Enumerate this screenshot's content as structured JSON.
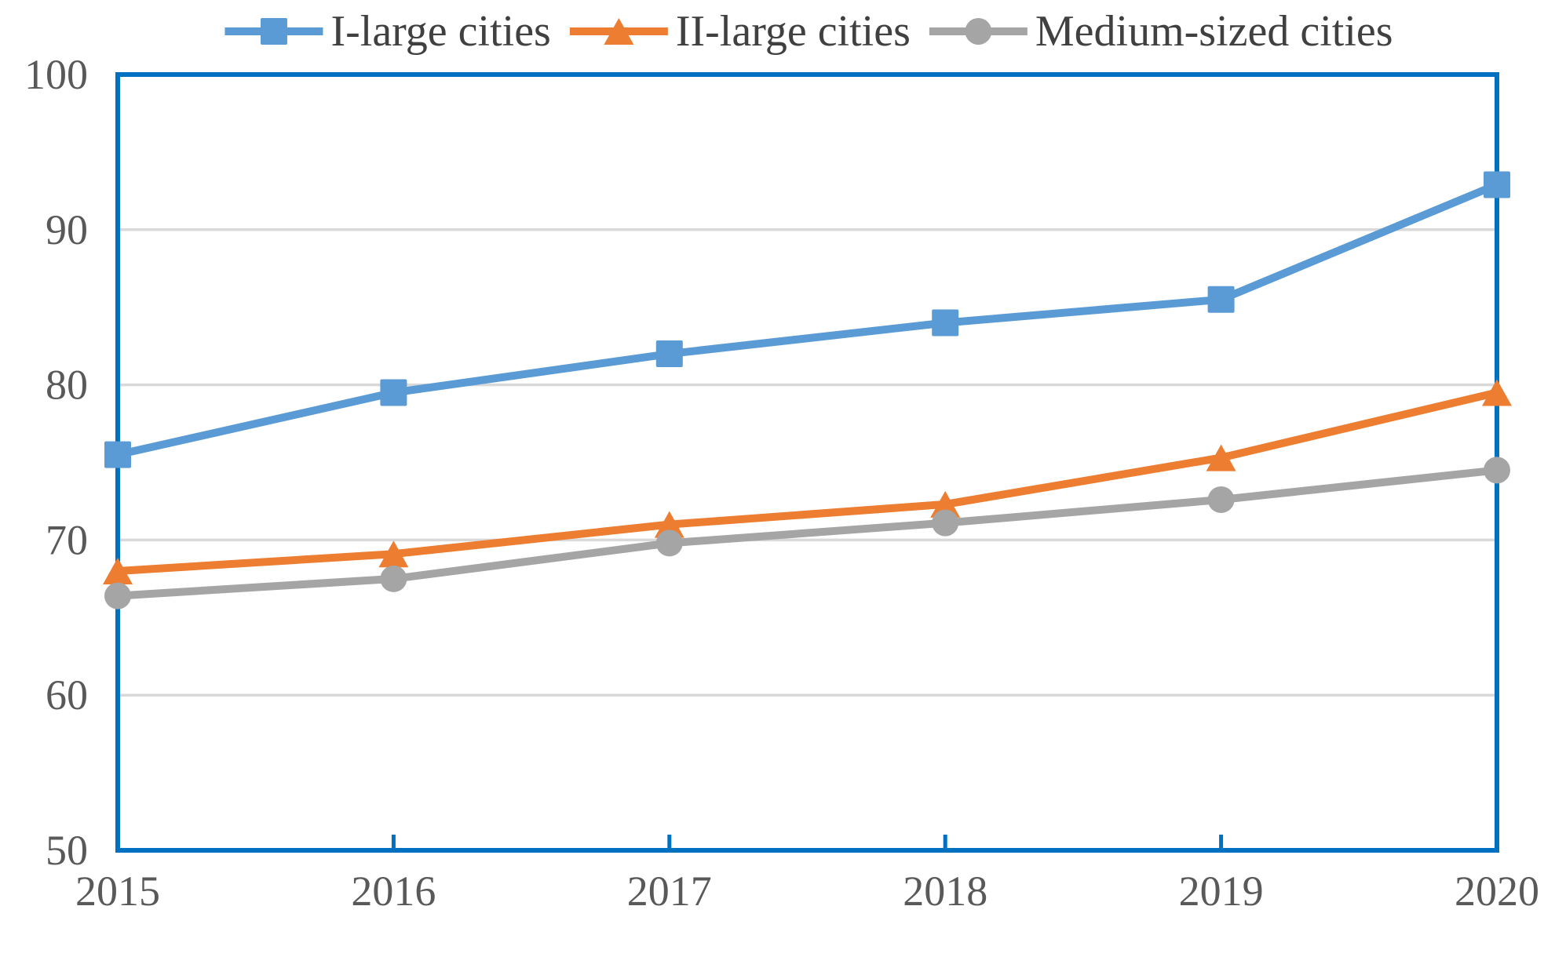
{
  "chart_data": {
    "type": "line",
    "title": "",
    "xlabel": "",
    "ylabel": "",
    "categories": [
      "2015",
      "2016",
      "2017",
      "2018",
      "2019",
      "2020"
    ],
    "series": [
      {
        "name": "I-large cities",
        "values": [
          75.5,
          79.5,
          82.0,
          84.0,
          85.5,
          92.9
        ],
        "color": "#5B9BD5",
        "marker": "square"
      },
      {
        "name": "II-large cities",
        "values": [
          68.0,
          69.1,
          71.0,
          72.3,
          75.3,
          79.5
        ],
        "color": "#ED7D31",
        "marker": "triangle"
      },
      {
        "name": "Medium-sized cities",
        "values": [
          66.4,
          67.5,
          69.8,
          71.1,
          72.6,
          74.5
        ],
        "color": "#A5A5A5",
        "marker": "circle"
      }
    ],
    "ylim": [
      50,
      100
    ],
    "yticks": [
      50,
      60,
      70,
      80,
      90,
      100
    ],
    "grid": true,
    "legend_position": "top",
    "colors": {
      "axis_border": "#0070C0",
      "gridline": "#D9D9D9",
      "axis_label_text": "#595959",
      "legend_text": "#404040"
    }
  }
}
